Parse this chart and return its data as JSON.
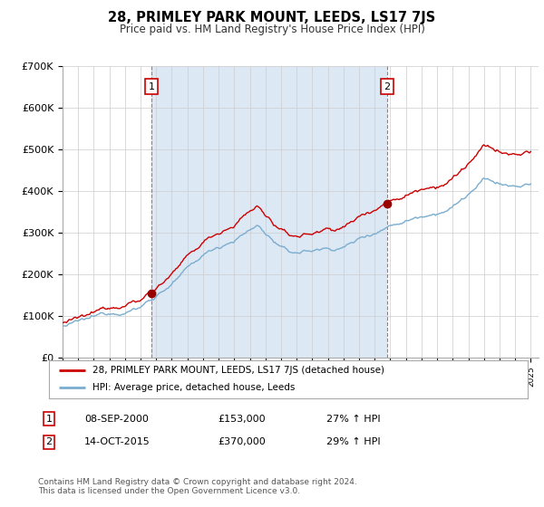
{
  "title": "28, PRIMLEY PARK MOUNT, LEEDS, LS17 7JS",
  "subtitle": "Price paid vs. HM Land Registry's House Price Index (HPI)",
  "ylabel_ticks": [
    "£0",
    "£100K",
    "£200K",
    "£300K",
    "£400K",
    "£500K",
    "£600K",
    "£700K"
  ],
  "ytick_values": [
    0,
    100000,
    200000,
    300000,
    400000,
    500000,
    600000,
    700000
  ],
  "ylim": [
    0,
    700000
  ],
  "xlim_start": 1995.0,
  "xlim_end": 2025.5,
  "background_color": "#ffffff",
  "grid_color": "#cccccc",
  "shade_color": "#dde8f5",
  "legend_label_red": "28, PRIMLEY PARK MOUNT, LEEDS, LS17 7JS (detached house)",
  "legend_label_blue": "HPI: Average price, detached house, Leeds",
  "sale1_x": 2000.69,
  "sale1_y": 153000,
  "sale1_label": "1",
  "sale1_date": "08-SEP-2000",
  "sale1_price": "£153,000",
  "sale1_hpi": "27% ↑ HPI",
  "sale2_x": 2015.79,
  "sale2_y": 370000,
  "sale2_label": "2",
  "sale2_date": "14-OCT-2015",
  "sale2_price": "£370,000",
  "sale2_hpi": "29% ↑ HPI",
  "footnote": "Contains HM Land Registry data © Crown copyright and database right 2024.\nThis data is licensed under the Open Government Licence v3.0.",
  "red_color": "#cc0000",
  "blue_color": "#7aadcf",
  "dashed_line_color": "#cc6666",
  "marker_box_color": "#cc0000",
  "marker_dot_color": "#990000"
}
